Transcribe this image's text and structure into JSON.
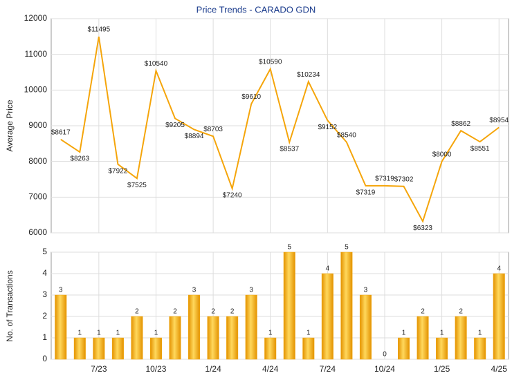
{
  "chart_data": [
    {
      "type": "line",
      "title": "Price Trends - CARADO GDN",
      "y_label": "Average Price",
      "categories": [
        null,
        null,
        "7/23",
        null,
        null,
        "10/23",
        null,
        null,
        "1/24",
        null,
        null,
        "4/24",
        null,
        null,
        "7/24",
        null,
        null,
        "10/24",
        null,
        null,
        "1/25",
        null,
        null,
        "4/25"
      ],
      "values": [
        8617,
        8263,
        11495,
        7922,
        7525,
        10540,
        9205,
        8894,
        8703,
        7240,
        9610,
        10590,
        8537,
        10234,
        9152,
        8540,
        7319,
        7319,
        7302,
        6323,
        8000,
        8862,
        8551,
        8954
      ],
      "value_labels": [
        "$8617",
        "$8263",
        "$11495",
        "$7922",
        "$7525",
        "$10540",
        "$9205",
        "$8894",
        "$8703",
        "$7240",
        "$9610",
        "$10590",
        "$8537",
        "$10234",
        "$9152",
        "$8540",
        "$7319",
        "$7319",
        "$7302",
        "$6323",
        "$8000",
        "$8862",
        "$8551",
        "$8954"
      ],
      "color": "#f5a50a",
      "ylim": [
        6000,
        12000
      ],
      "yticks": [
        6000,
        7000,
        8000,
        9000,
        10000,
        11000,
        12000
      ],
      "grid": true
    },
    {
      "type": "bar",
      "y_label": "No. of Transactions",
      "categories": [
        null,
        null,
        "7/23",
        null,
        null,
        "10/23",
        null,
        null,
        "1/24",
        null,
        null,
        "4/24",
        null,
        null,
        "7/24",
        null,
        null,
        "10/24",
        null,
        null,
        "1/25",
        null,
        null,
        "4/25"
      ],
      "values": [
        3,
        1,
        1,
        1,
        2,
        1,
        2,
        3,
        2,
        2,
        3,
        1,
        5,
        1,
        4,
        5,
        3,
        0,
        1,
        2,
        1,
        2,
        1,
        4
      ],
      "color": "#f2a80c",
      "ylim": [
        0,
        5
      ],
      "yticks": [
        0,
        1,
        2,
        3,
        4,
        5
      ],
      "grid": true
    }
  ]
}
